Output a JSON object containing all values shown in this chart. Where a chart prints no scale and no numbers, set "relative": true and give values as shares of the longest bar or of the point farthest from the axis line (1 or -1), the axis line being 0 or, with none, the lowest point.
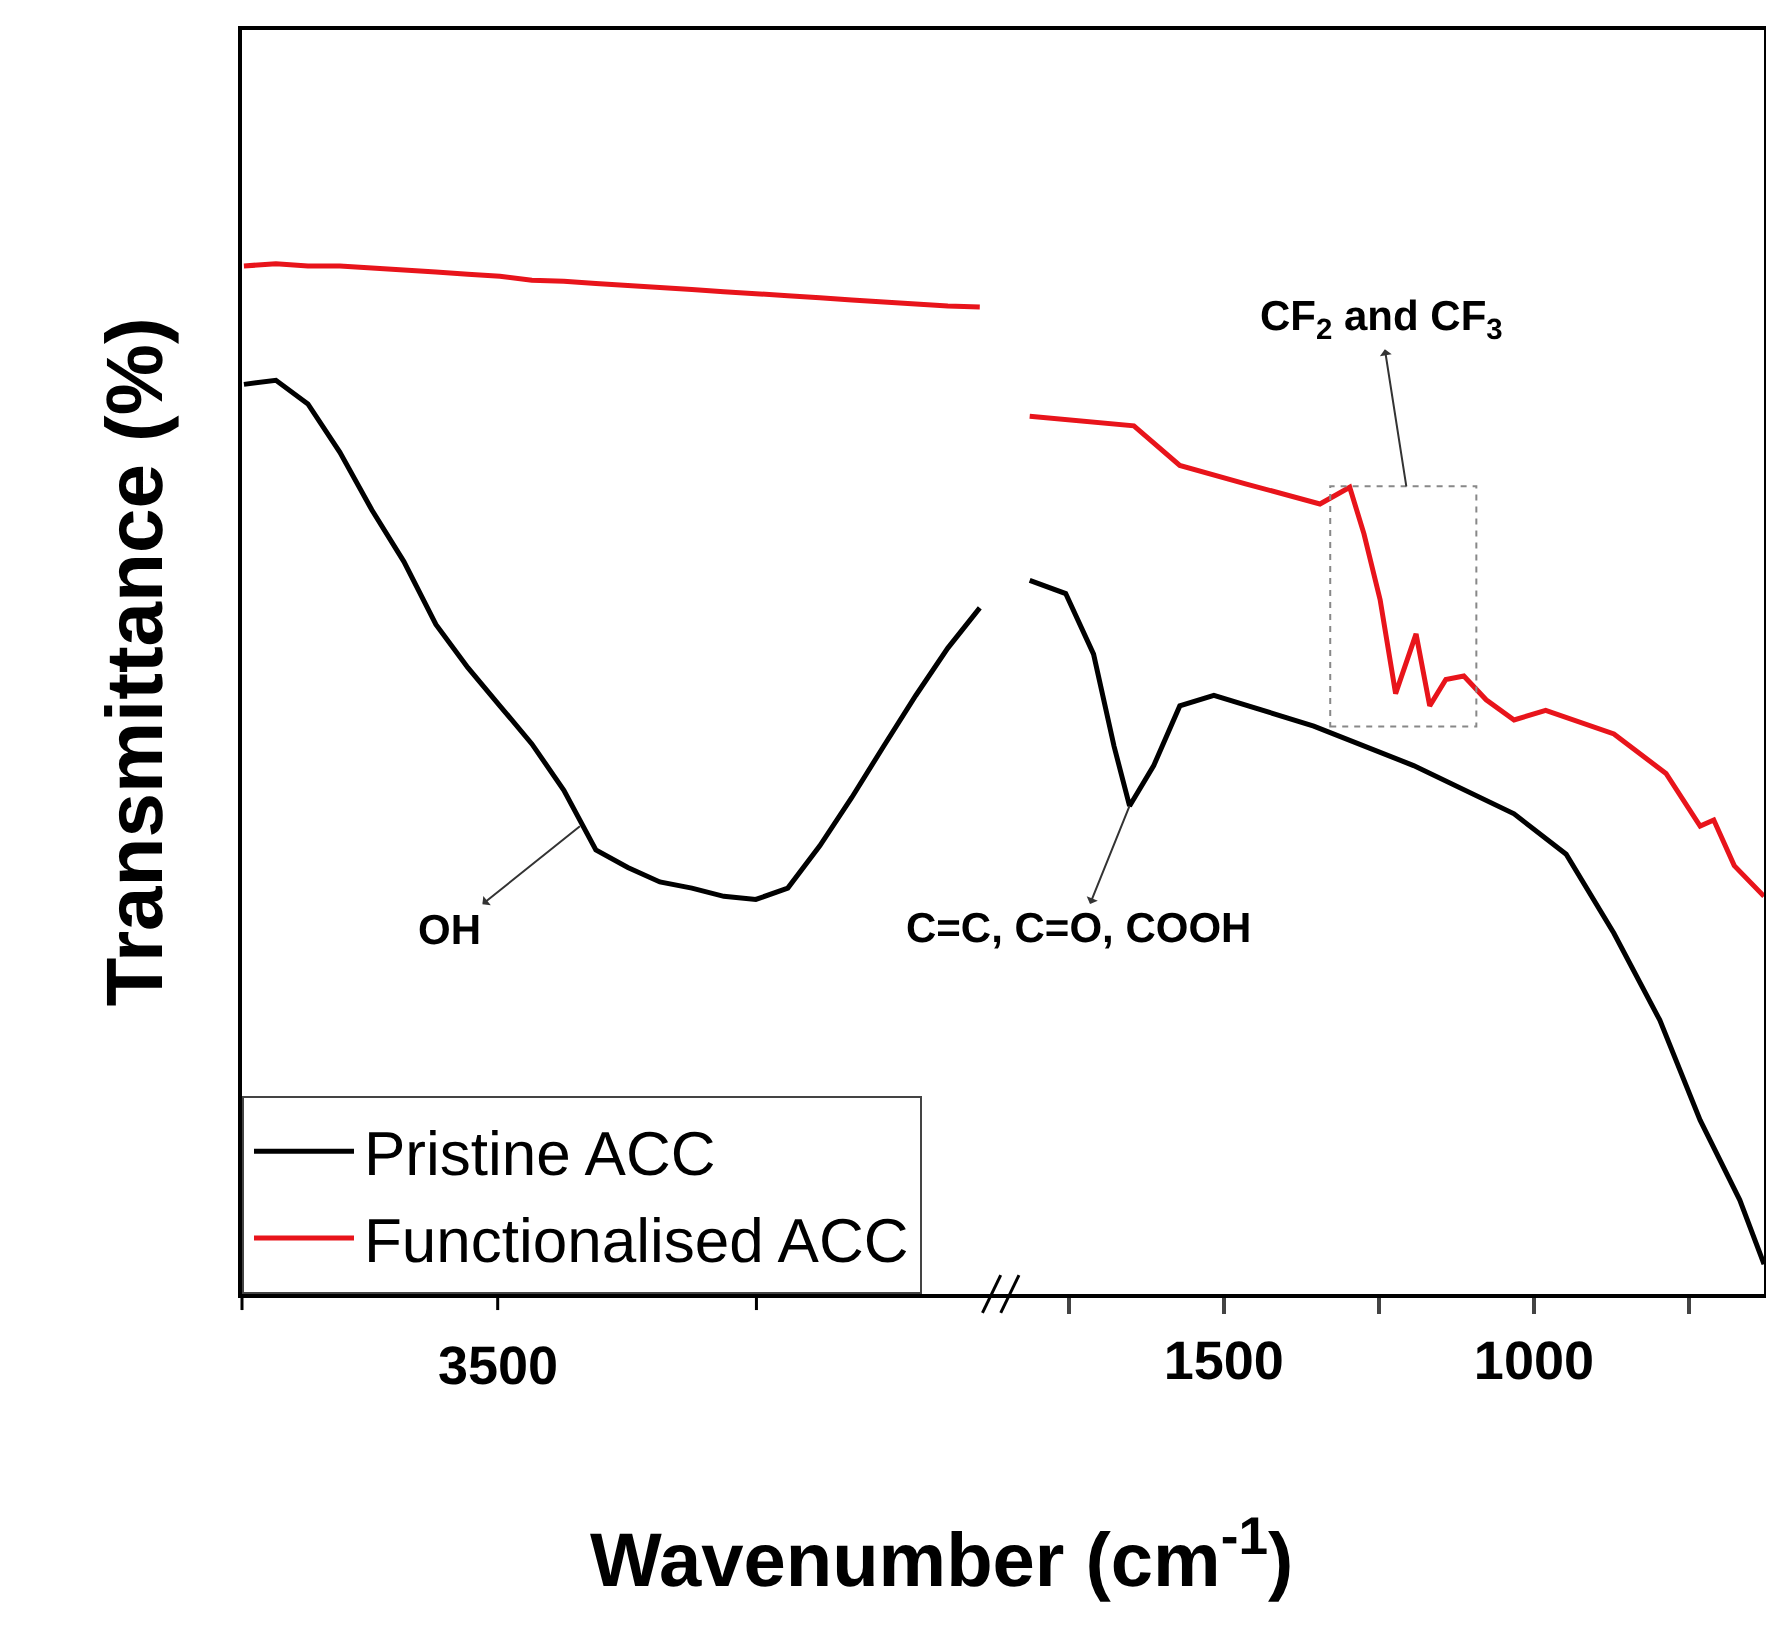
{
  "chart_data": [
    {
      "type": "line",
      "relative": true,
      "ylabel": "Transmittance (%)",
      "xlabel": "Wavenumber (cm$^{-1}$)",
      "legend": "bottom left",
      "line_style": "solid",
      "categories": [
        null,
        null,
        null,
        null,
        null,
        null,
        null,
        null,
        null,
        null,
        null,
        null,
        null,
        null,
        null,
        null,
        null,
        null,
        null,
        null,
        null,
        null,
        null,
        null
      ],
      "series": [
        {
          "name": "Pristine ACC",
          "color": "#000000",
          "values": [
            0.883,
            0.887,
            0.864,
            0.817,
            0.761,
            0.711,
            0.65,
            0.608,
            0.571,
            0.534,
            0.489,
            0.431,
            0.414,
            0.4,
            0.394,
            0.386,
            0.383,
            0.394,
            0.435,
            0.482,
            0.532,
            0.581,
            0.627,
            0.666
          ]
        },
        {
          "name": "Functionalised ACC",
          "color": "#e8141b",
          "values": [
            0.998,
            1.0,
            0.998,
            0.998,
            0.996,
            0.994,
            0.992,
            0.99,
            0.988,
            0.984,
            0.983,
            0.981,
            0.979,
            0.977,
            0.975,
            0.973,
            0.971,
            0.969,
            0.967,
            0.965,
            0.963,
            0.961,
            0.959,
            0.958
          ]
        }
      ],
      "annotations": [
        "OH",
        "3500"
      ]
    },
    {
      "type": "line",
      "relative": true,
      "line_style": "solid",
      "xlim": [
        1845,
        629
      ],
      "xticks": [
        {
          "value": 1750,
          "label": null
        },
        1500,
        {
          "value": 1250,
          "label": null
        },
        1000,
        {
          "value": 750,
          "label": null
        }
      ],
      "series": [
        {
          "color": "#000000",
          "x": [
            1813,
            1755,
            1710,
            1677,
            1652,
            1613,
            1571,
            1516,
            1355,
            1194,
            1032,
            948,
            871,
            797,
            732,
            668,
            629
          ],
          "values": [
            0.813,
            0.798,
            0.729,
            0.624,
            0.556,
            0.602,
            0.67,
            0.682,
            0.647,
            0.602,
            0.547,
            0.501,
            0.411,
            0.312,
            0.198,
            0.107,
            0.034
          ]
        },
        {
          "color": "#e8141b",
          "x": [
            1813,
            1645,
            1571,
            1465,
            1345,
            1297,
            1274,
            1248,
            1223,
            1190,
            1168,
            1142,
            1113,
            1077,
            1032,
            981,
            871,
            787,
            732,
            710,
            677,
            629
          ],
          "values": [
            1.0,
            0.989,
            0.944,
            0.923,
            0.9,
            0.919,
            0.866,
            0.791,
            0.684,
            0.752,
            0.67,
            0.7,
            0.704,
            0.677,
            0.654,
            0.665,
            0.638,
            0.593,
            0.533,
            0.54,
            0.488,
            0.453
          ]
        }
      ],
      "annotations": [
        {
          "text": "C=C, C=O, COOH",
          "x": 1652,
          "y": 0.556
        },
        "CF$_{2}$ and CF$_{3}$"
      ]
    }
  ]
}
